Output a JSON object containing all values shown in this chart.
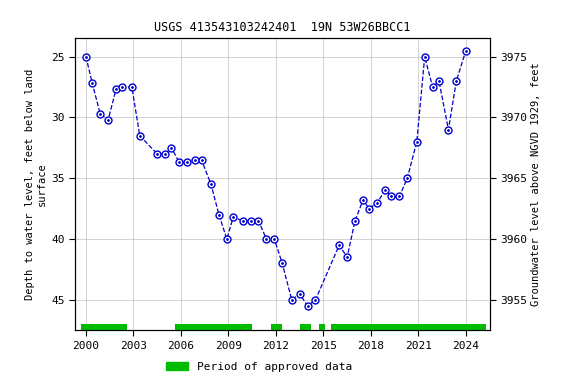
{
  "title": "USGS 413543103242401  19N 53W26BBCC1",
  "ylabel_left": "Depth to water level, feet below land\nsurface",
  "ylabel_right": "Groundwater level above NGVD 1929, feet",
  "xlim": [
    1999.3,
    2025.5
  ],
  "ylim_left": [
    47.5,
    23.5
  ],
  "ylim_right": [
    3952.5,
    3976.5
  ],
  "xticks": [
    2000,
    2003,
    2006,
    2009,
    2012,
    2015,
    2018,
    2021,
    2024
  ],
  "yticks_left": [
    25,
    30,
    35,
    40,
    45
  ],
  "yticks_right": [
    3955,
    3960,
    3965,
    3970,
    3975
  ],
  "data_x": [
    2000.0,
    2000.4,
    2000.9,
    2001.4,
    2001.9,
    2002.3,
    2002.9,
    2003.4,
    2004.5,
    2005.0,
    2005.4,
    2005.9,
    2006.4,
    2006.9,
    2007.3,
    2007.9,
    2008.4,
    2008.9,
    2009.3,
    2009.9,
    2010.4,
    2010.9,
    2011.4,
    2011.9,
    2012.4,
    2013.0,
    2013.5,
    2014.0,
    2014.5,
    2016.0,
    2016.5,
    2017.0,
    2017.5,
    2017.9,
    2018.4,
    2018.9,
    2019.3,
    2019.8,
    2020.3,
    2020.9,
    2021.4,
    2021.9,
    2022.3,
    2022.9,
    2023.4,
    2024.0
  ],
  "data_y": [
    25.0,
    27.2,
    29.7,
    30.2,
    27.7,
    27.5,
    27.5,
    31.5,
    33.0,
    33.0,
    32.5,
    33.7,
    33.7,
    33.5,
    33.5,
    35.5,
    38.0,
    40.0,
    38.2,
    38.5,
    38.5,
    38.5,
    40.0,
    40.0,
    42.0,
    45.0,
    44.5,
    45.5,
    45.0,
    40.5,
    41.5,
    38.5,
    36.8,
    37.5,
    37.0,
    36.0,
    36.5,
    36.5,
    35.0,
    32.0,
    25.0,
    27.5,
    27.0,
    31.0,
    27.0,
    24.5
  ],
  "line_color": "#0000cc",
  "marker_facecolor": "#ffffff",
  "marker_edgecolor": "#0000cc",
  "legend_label": "Period of approved data",
  "legend_color": "#00bb00",
  "approved_segments": [
    [
      1999.7,
      2002.6
    ],
    [
      2005.6,
      2010.5
    ],
    [
      2011.7,
      2012.4
    ],
    [
      2013.5,
      2014.2
    ],
    [
      2014.7,
      2015.1
    ],
    [
      2015.5,
      2025.3
    ]
  ],
  "background_color": "#ffffff",
  "grid_color": "#c0c0c0",
  "title_fontsize": 8.5,
  "axis_fontsize": 7.5,
  "tick_fontsize": 8,
  "bar_y": 47.0,
  "bar_height": 0.9
}
